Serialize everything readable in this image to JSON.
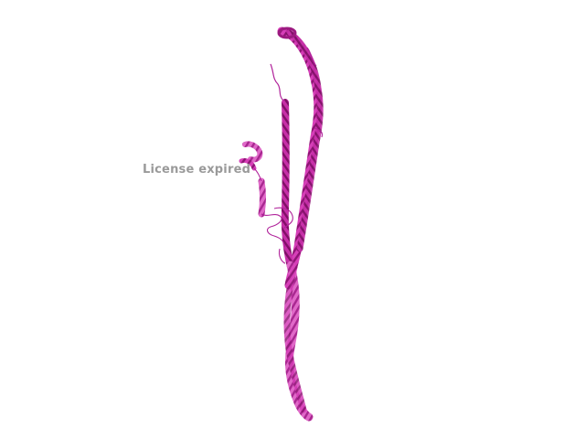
{
  "viewer": {
    "watermark_text": "License expired",
    "background_color": "#ffffff",
    "watermark_color": "#9a9a9a"
  },
  "structure": {
    "representation": "cartoon",
    "colors": {
      "primary": "#d63fb8",
      "dark": "#9c1a80",
      "light": "#ee7fd8"
    }
  }
}
